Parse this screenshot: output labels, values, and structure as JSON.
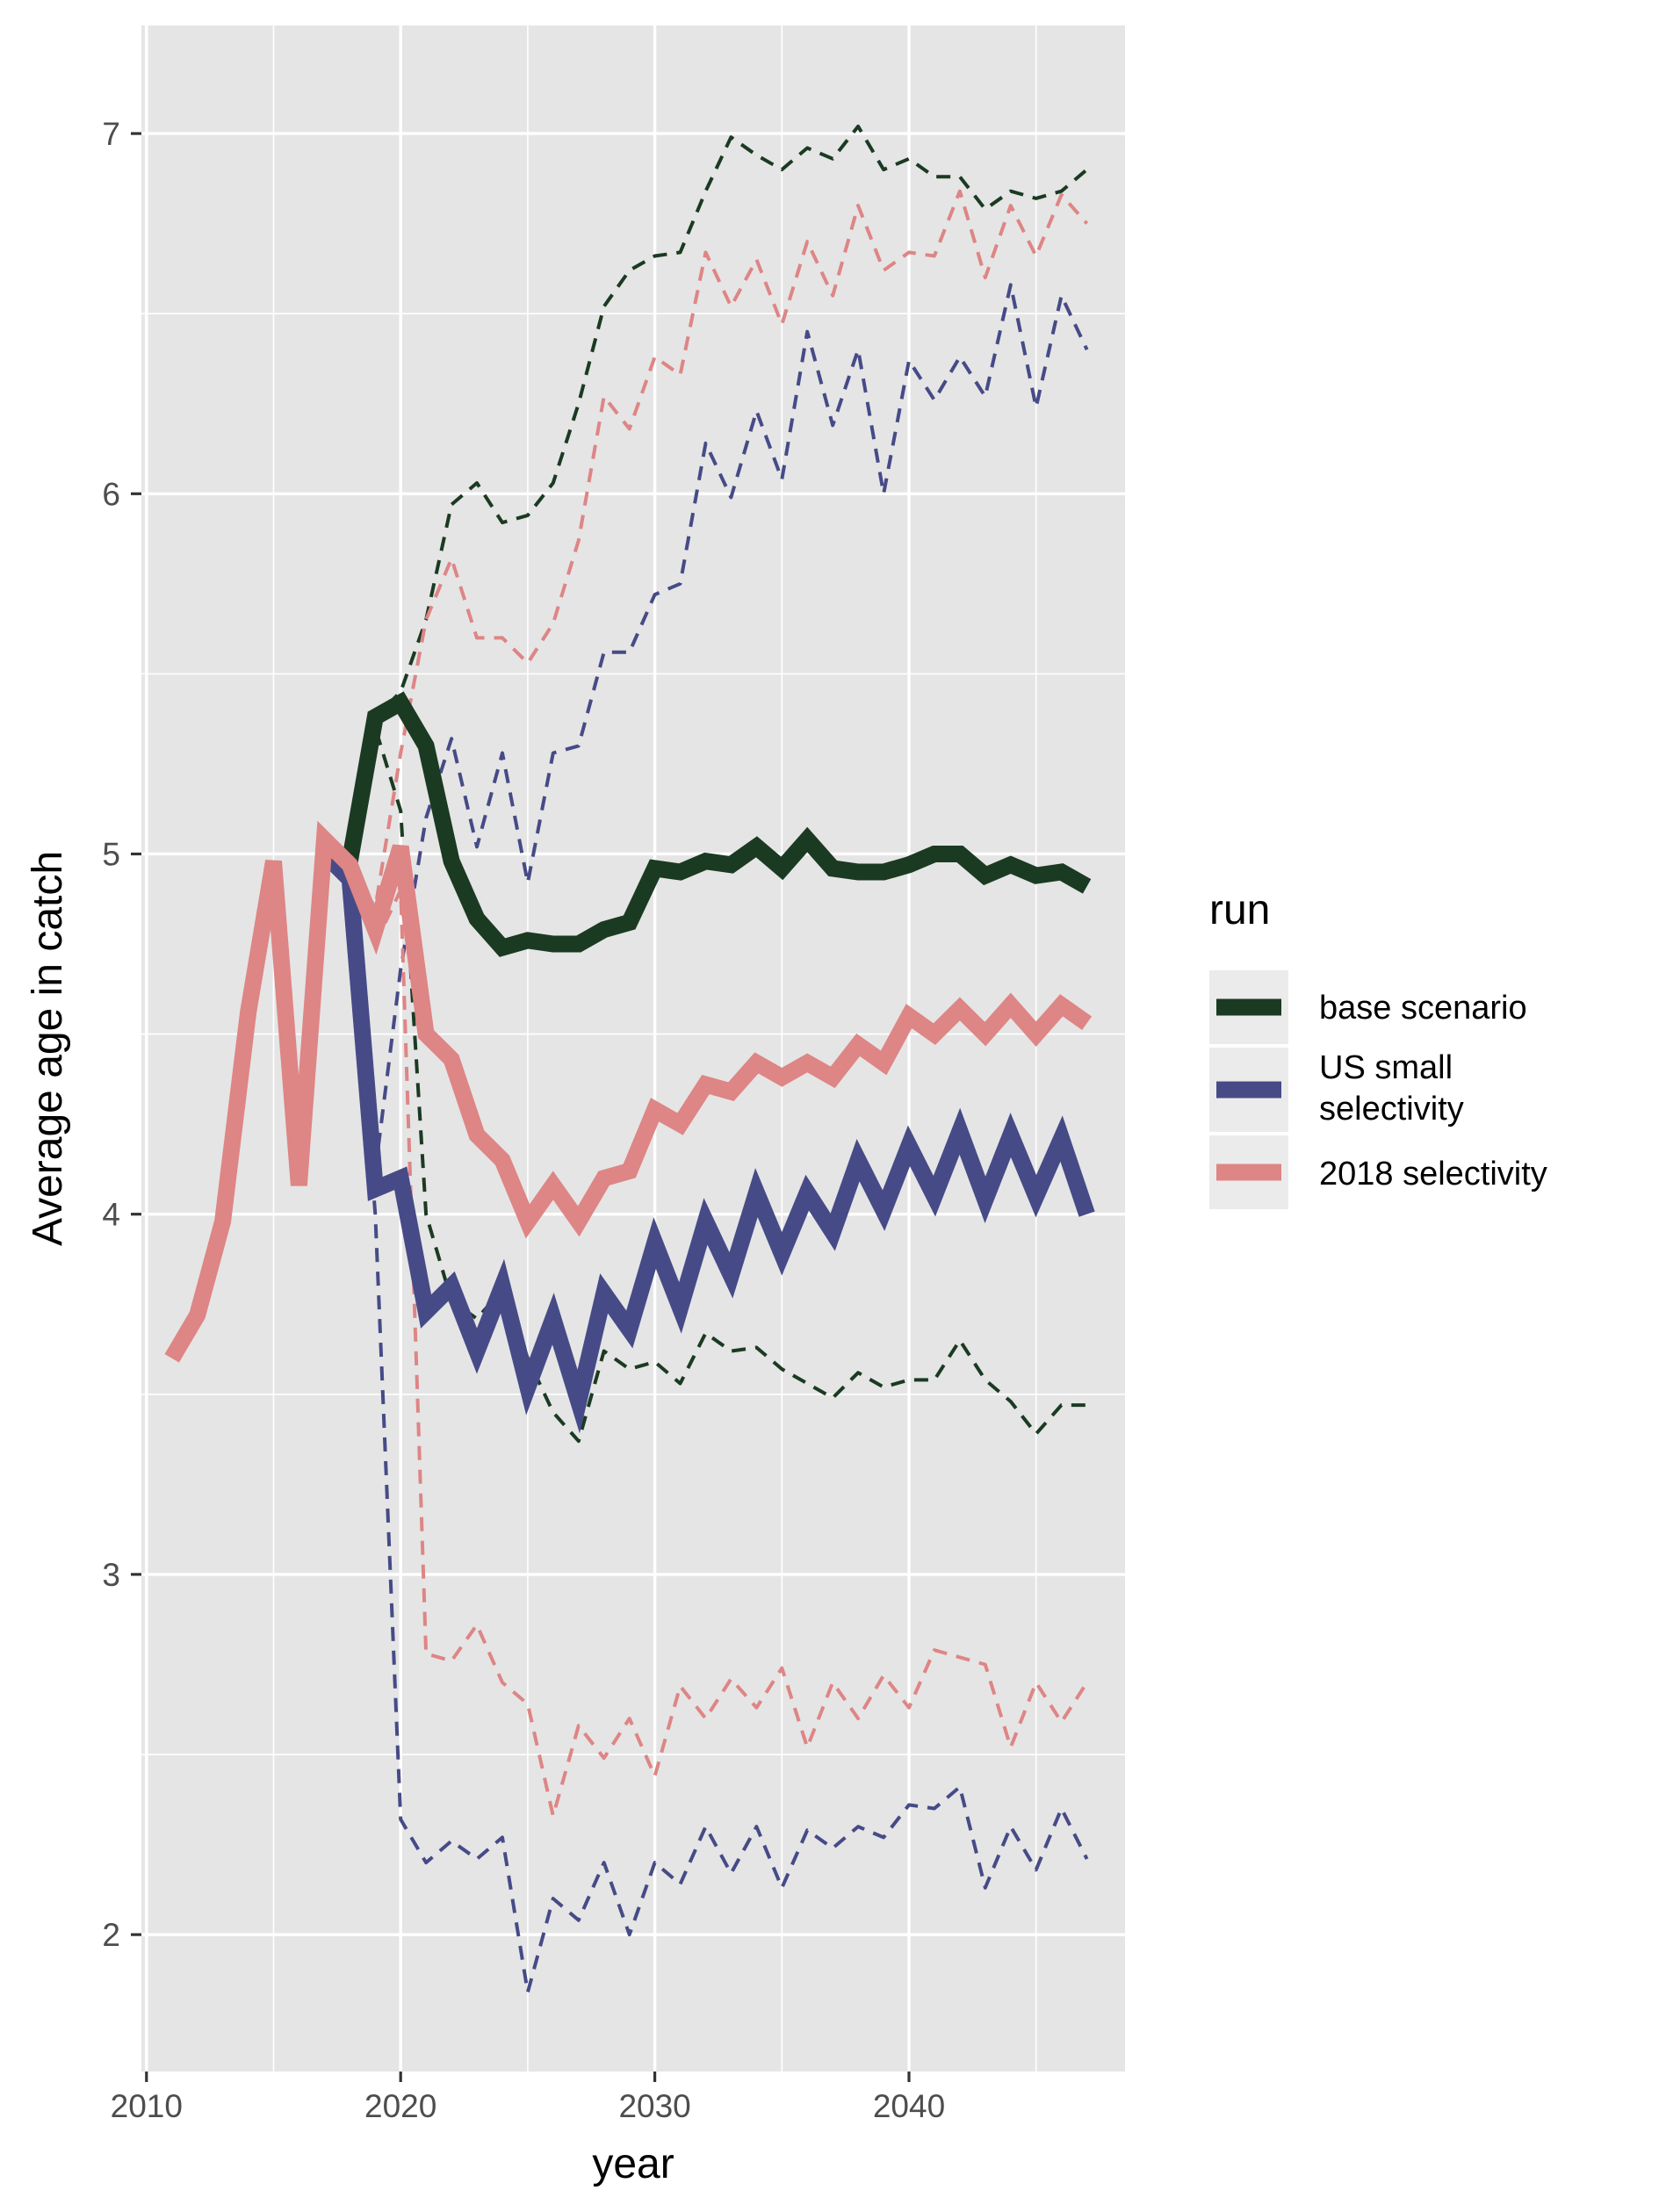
{
  "chart_data": {
    "type": "line",
    "title": "",
    "xlabel": "year",
    "ylabel": "Average age in catch",
    "xlim": [
      2009.8,
      2048.5
    ],
    "ylim": [
      1.62,
      7.3
    ],
    "x_ticks": [
      2010,
      2020,
      2030,
      2040
    ],
    "y_ticks": [
      2,
      3,
      4,
      5,
      6,
      7
    ],
    "grid": true,
    "legend": {
      "title": "run",
      "placement": "right",
      "entries": [
        "base scenario",
        "US small selectivity",
        "2018 selectivity"
      ]
    },
    "colors": {
      "base scenario": "#1b3a22",
      "US small selectivity": "#464b87",
      "2018 selectivity": "#de8585",
      "panel_background": "#e5e5e5",
      "grid": "#ffffff"
    },
    "series": [
      {
        "name": "base scenario",
        "color": "#1b3a22",
        "median": [
          [
            2017,
            5.0
          ],
          [
            2018,
            4.98
          ],
          [
            2019,
            5.38
          ],
          [
            2020,
            5.42
          ],
          [
            2021,
            5.3
          ],
          [
            2022,
            4.98
          ],
          [
            2023,
            4.82
          ],
          [
            2024,
            4.74
          ],
          [
            2025,
            4.76
          ],
          [
            2026,
            4.75
          ],
          [
            2027,
            4.75
          ],
          [
            2028,
            4.79
          ],
          [
            2029,
            4.81
          ],
          [
            2030,
            4.96
          ],
          [
            2031,
            4.95
          ],
          [
            2032,
            4.98
          ],
          [
            2033,
            4.97
          ],
          [
            2034,
            5.02
          ],
          [
            2035,
            4.96
          ],
          [
            2036,
            5.04
          ],
          [
            2037,
            4.96
          ],
          [
            2038,
            4.95
          ],
          [
            2039,
            4.95
          ],
          [
            2040,
            4.97
          ],
          [
            2041,
            5.0
          ],
          [
            2042,
            5.0
          ],
          [
            2043,
            4.94
          ],
          [
            2044,
            4.97
          ],
          [
            2045,
            4.94
          ],
          [
            2046,
            4.95
          ],
          [
            2047,
            4.91
          ]
        ],
        "upper": [
          [
            2017,
            5.0
          ],
          [
            2018,
            4.98
          ],
          [
            2019,
            5.38
          ],
          [
            2020,
            5.45
          ],
          [
            2021,
            5.65
          ],
          [
            2022,
            5.97
          ],
          [
            2023,
            6.03
          ],
          [
            2024,
            5.92
          ],
          [
            2025,
            5.94
          ],
          [
            2026,
            6.03
          ],
          [
            2027,
            6.25
          ],
          [
            2028,
            6.52
          ],
          [
            2029,
            6.62
          ],
          [
            2030,
            6.66
          ],
          [
            2031,
            6.67
          ],
          [
            2032,
            6.84
          ],
          [
            2033,
            6.99
          ],
          [
            2034,
            6.94
          ],
          [
            2035,
            6.9
          ],
          [
            2036,
            6.96
          ],
          [
            2037,
            6.93
          ],
          [
            2038,
            7.02
          ],
          [
            2039,
            6.9
          ],
          [
            2040,
            6.93
          ],
          [
            2041,
            6.88
          ],
          [
            2042,
            6.88
          ],
          [
            2043,
            6.79
          ],
          [
            2044,
            6.84
          ],
          [
            2045,
            6.82
          ],
          [
            2046,
            6.84
          ],
          [
            2047,
            6.9
          ]
        ],
        "lower": [
          [
            2017,
            5.0
          ],
          [
            2018,
            4.98
          ],
          [
            2019,
            5.35
          ],
          [
            2020,
            5.12
          ],
          [
            2021,
            4.0
          ],
          [
            2022,
            3.76
          ],
          [
            2023,
            3.71
          ],
          [
            2024,
            3.79
          ],
          [
            2025,
            3.6
          ],
          [
            2026,
            3.45
          ],
          [
            2027,
            3.37
          ],
          [
            2028,
            3.62
          ],
          [
            2029,
            3.57
          ],
          [
            2030,
            3.59
          ],
          [
            2031,
            3.53
          ],
          [
            2032,
            3.67
          ],
          [
            2033,
            3.62
          ],
          [
            2034,
            3.63
          ],
          [
            2035,
            3.57
          ],
          [
            2036,
            3.53
          ],
          [
            2037,
            3.49
          ],
          [
            2038,
            3.56
          ],
          [
            2039,
            3.52
          ],
          [
            2040,
            3.54
          ],
          [
            2041,
            3.54
          ],
          [
            2042,
            3.65
          ],
          [
            2043,
            3.54
          ],
          [
            2044,
            3.48
          ],
          [
            2045,
            3.39
          ],
          [
            2046,
            3.47
          ],
          [
            2047,
            3.47
          ]
        ]
      },
      {
        "name": "US small selectivity",
        "color": "#464b87",
        "median": [
          [
            2017,
            5.0
          ],
          [
            2018,
            4.93
          ],
          [
            2019,
            4.07
          ],
          [
            2020,
            4.1
          ],
          [
            2021,
            3.73
          ],
          [
            2022,
            3.8
          ],
          [
            2023,
            3.62
          ],
          [
            2024,
            3.8
          ],
          [
            2025,
            3.52
          ],
          [
            2026,
            3.71
          ],
          [
            2027,
            3.48
          ],
          [
            2028,
            3.78
          ],
          [
            2029,
            3.68
          ],
          [
            2030,
            3.92
          ],
          [
            2031,
            3.74
          ],
          [
            2032,
            3.98
          ],
          [
            2033,
            3.83
          ],
          [
            2034,
            4.06
          ],
          [
            2035,
            3.89
          ],
          [
            2036,
            4.06
          ],
          [
            2037,
            3.95
          ],
          [
            2038,
            4.15
          ],
          [
            2039,
            4.01
          ],
          [
            2040,
            4.19
          ],
          [
            2041,
            4.05
          ],
          [
            2042,
            4.23
          ],
          [
            2043,
            4.04
          ],
          [
            2044,
            4.22
          ],
          [
            2045,
            4.05
          ],
          [
            2046,
            4.21
          ],
          [
            2047,
            4.0
          ]
        ],
        "upper": [
          [
            2017,
            5.0
          ],
          [
            2018,
            4.95
          ],
          [
            2019,
            4.12
          ],
          [
            2020,
            4.68
          ],
          [
            2021,
            5.1
          ],
          [
            2022,
            5.32
          ],
          [
            2023,
            5.02
          ],
          [
            2024,
            5.28
          ],
          [
            2025,
            4.92
          ],
          [
            2026,
            5.28
          ],
          [
            2027,
            5.3
          ],
          [
            2028,
            5.56
          ],
          [
            2029,
            5.56
          ],
          [
            2030,
            5.72
          ],
          [
            2031,
            5.75
          ],
          [
            2032,
            6.14
          ],
          [
            2033,
            5.99
          ],
          [
            2034,
            6.23
          ],
          [
            2035,
            6.04
          ],
          [
            2036,
            6.45
          ],
          [
            2037,
            6.19
          ],
          [
            2038,
            6.4
          ],
          [
            2039,
            6.0
          ],
          [
            2040,
            6.37
          ],
          [
            2041,
            6.26
          ],
          [
            2042,
            6.38
          ],
          [
            2043,
            6.27
          ],
          [
            2044,
            6.58
          ],
          [
            2045,
            6.24
          ],
          [
            2046,
            6.55
          ],
          [
            2047,
            6.4
          ]
        ],
        "lower": [
          [
            2017,
            5.0
          ],
          [
            2018,
            4.9
          ],
          [
            2019,
            4.0
          ],
          [
            2020,
            2.32
          ],
          [
            2021,
            2.2
          ],
          [
            2022,
            2.26
          ],
          [
            2023,
            2.21
          ],
          [
            2024,
            2.27
          ],
          [
            2025,
            1.84
          ],
          [
            2026,
            2.1
          ],
          [
            2027,
            2.04
          ],
          [
            2028,
            2.2
          ],
          [
            2029,
            2.0
          ],
          [
            2030,
            2.2
          ],
          [
            2031,
            2.14
          ],
          [
            2032,
            2.3
          ],
          [
            2033,
            2.17
          ],
          [
            2034,
            2.3
          ],
          [
            2035,
            2.13
          ],
          [
            2036,
            2.29
          ],
          [
            2037,
            2.24
          ],
          [
            2038,
            2.3
          ],
          [
            2039,
            2.27
          ],
          [
            2040,
            2.36
          ],
          [
            2041,
            2.35
          ],
          [
            2042,
            2.41
          ],
          [
            2043,
            2.13
          ],
          [
            2044,
            2.3
          ],
          [
            2045,
            2.18
          ],
          [
            2046,
            2.35
          ],
          [
            2047,
            2.21
          ]
        ]
      },
      {
        "name": "2018 selectivity",
        "color": "#de8585",
        "median": [
          [
            2011,
            3.6
          ],
          [
            2012,
            3.72
          ],
          [
            2013,
            3.98
          ],
          [
            2014,
            4.56
          ],
          [
            2015,
            4.98
          ],
          [
            2016,
            4.08
          ],
          [
            2017,
            5.04
          ],
          [
            2018,
            4.97
          ],
          [
            2019,
            4.79
          ],
          [
            2020,
            5.02
          ],
          [
            2021,
            4.5
          ],
          [
            2022,
            4.43
          ],
          [
            2023,
            4.22
          ],
          [
            2024,
            4.15
          ],
          [
            2025,
            3.98
          ],
          [
            2026,
            4.08
          ],
          [
            2027,
            3.98
          ],
          [
            2028,
            4.1
          ],
          [
            2029,
            4.12
          ],
          [
            2030,
            4.29
          ],
          [
            2031,
            4.25
          ],
          [
            2032,
            4.36
          ],
          [
            2033,
            4.34
          ],
          [
            2034,
            4.42
          ],
          [
            2035,
            4.38
          ],
          [
            2036,
            4.42
          ],
          [
            2037,
            4.38
          ],
          [
            2038,
            4.47
          ],
          [
            2039,
            4.42
          ],
          [
            2040,
            4.55
          ],
          [
            2041,
            4.5
          ],
          [
            2042,
            4.57
          ],
          [
            2043,
            4.5
          ],
          [
            2044,
            4.58
          ],
          [
            2045,
            4.5
          ],
          [
            2046,
            4.58
          ],
          [
            2047,
            4.53
          ]
        ],
        "upper": [
          [
            2017,
            5.04
          ],
          [
            2018,
            4.97
          ],
          [
            2019,
            4.85
          ],
          [
            2020,
            5.28
          ],
          [
            2021,
            5.65
          ],
          [
            2022,
            5.82
          ],
          [
            2023,
            5.6
          ],
          [
            2024,
            5.6
          ],
          [
            2025,
            5.53
          ],
          [
            2026,
            5.64
          ],
          [
            2027,
            5.87
          ],
          [
            2028,
            6.27
          ],
          [
            2029,
            6.18
          ],
          [
            2030,
            6.38
          ],
          [
            2031,
            6.33
          ],
          [
            2032,
            6.67
          ],
          [
            2033,
            6.52
          ],
          [
            2034,
            6.65
          ],
          [
            2035,
            6.47
          ],
          [
            2036,
            6.7
          ],
          [
            2037,
            6.55
          ],
          [
            2038,
            6.8
          ],
          [
            2039,
            6.62
          ],
          [
            2040,
            6.67
          ],
          [
            2041,
            6.66
          ],
          [
            2042,
            6.84
          ],
          [
            2043,
            6.6
          ],
          [
            2044,
            6.8
          ],
          [
            2045,
            6.66
          ],
          [
            2046,
            6.83
          ],
          [
            2047,
            6.75
          ]
        ],
        "lower": [
          [
            2017,
            5.04
          ],
          [
            2018,
            4.97
          ],
          [
            2019,
            4.75
          ],
          [
            2020,
            4.9
          ],
          [
            2021,
            2.78
          ],
          [
            2022,
            2.76
          ],
          [
            2023,
            2.86
          ],
          [
            2024,
            2.7
          ],
          [
            2025,
            2.64
          ],
          [
            2026,
            2.33
          ],
          [
            2027,
            2.58
          ],
          [
            2028,
            2.49
          ],
          [
            2029,
            2.6
          ],
          [
            2030,
            2.44
          ],
          [
            2031,
            2.69
          ],
          [
            2032,
            2.6
          ],
          [
            2033,
            2.71
          ],
          [
            2034,
            2.63
          ],
          [
            2035,
            2.74
          ],
          [
            2036,
            2.52
          ],
          [
            2037,
            2.7
          ],
          [
            2038,
            2.6
          ],
          [
            2039,
            2.72
          ],
          [
            2040,
            2.63
          ],
          [
            2041,
            2.79
          ],
          [
            2042,
            2.77
          ],
          [
            2043,
            2.75
          ],
          [
            2044,
            2.52
          ],
          [
            2045,
            2.7
          ],
          [
            2046,
            2.59
          ],
          [
            2047,
            2.7
          ]
        ]
      }
    ]
  }
}
